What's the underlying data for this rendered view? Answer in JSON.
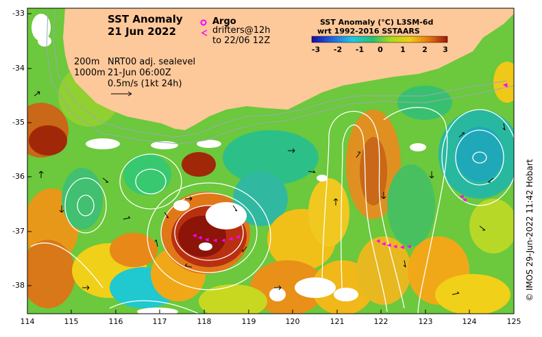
{
  "title": {
    "line1": "SST Anomaly",
    "line2": "21 Jun 2022"
  },
  "legend": {
    "argo_label": "Argo",
    "drifters_label": "drifters@12h",
    "drifters_to": "to 22/06 12Z",
    "argo_color": "#ff00ff",
    "drifter_color": "#ff00ff"
  },
  "annotations": {
    "depth_200": "200m",
    "depth_1000": "1000m",
    "sealevel": "NRT00 adj. sealevel",
    "time": "21-Jun 06:00Z",
    "scale": "0.5m/s (1kt 24h)"
  },
  "colorbar": {
    "title1": "SST Anomaly (°C) L3SM-6d",
    "title2": "wrt 1992-2016 SSTAARS",
    "ticks": [
      "-3",
      "-2",
      "-1",
      "0",
      "1",
      "2",
      "3"
    ],
    "range": [
      -3,
      3
    ],
    "colors": [
      "#1a0aa0",
      "#1f5fe0",
      "#1ec8e8",
      "#26c070",
      "#a8dc18",
      "#f0d010",
      "#e87810",
      "#a01808"
    ]
  },
  "axes": {
    "lon_ticks": [
      "114",
      "115",
      "116",
      "117",
      "118",
      "119",
      "120",
      "121",
      "122",
      "123",
      "124",
      "125"
    ],
    "lat_ticks": [
      "-33",
      "-34",
      "-35",
      "-36",
      "-37",
      "-38"
    ],
    "lon_range": [
      114,
      125
    ],
    "lat_range": [
      -38.55,
      -32.9
    ]
  },
  "credit": "© IMOS 29-Jun-2022 11:42 Hobart",
  "land_color": "#fdc89a"
}
